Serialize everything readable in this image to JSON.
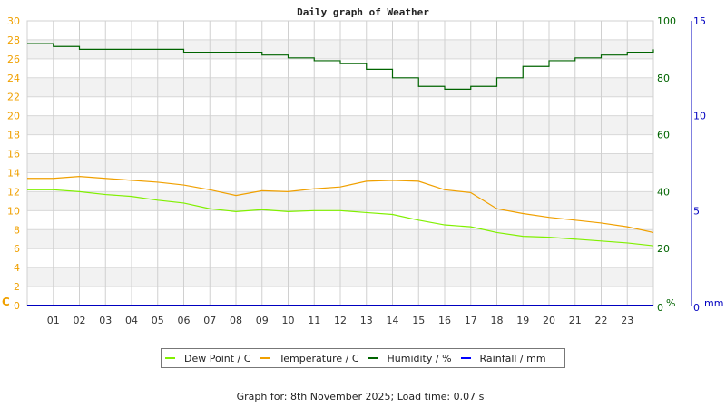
{
  "chart_data": {
    "type": "line",
    "title": "Daily graph of Weather",
    "xlabel": "",
    "x_ticks": [
      "01",
      "02",
      "03",
      "04",
      "05",
      "06",
      "07",
      "08",
      "09",
      "10",
      "11",
      "12",
      "13",
      "14",
      "15",
      "16",
      "17",
      "18",
      "19",
      "20",
      "21",
      "22",
      "23"
    ],
    "x": [
      0,
      1,
      2,
      3,
      4,
      5,
      6,
      7,
      8,
      9,
      10,
      11,
      12,
      13,
      14,
      15,
      16,
      17,
      18,
      19,
      20,
      21,
      22,
      23,
      24
    ],
    "axes": {
      "left": {
        "label": "C",
        "range": [
          0,
          30
        ],
        "ticks": [
          0,
          2,
          4,
          6,
          8,
          10,
          12,
          14,
          16,
          18,
          20,
          22,
          24,
          26,
          28,
          30
        ]
      },
      "right_humidity": {
        "label": "%",
        "range": [
          0,
          100
        ],
        "ticks": [
          0,
          20,
          40,
          60,
          80,
          100
        ]
      },
      "right_rainfall": {
        "label": "mm",
        "range": [
          0,
          15
        ],
        "ticks": [
          0,
          5,
          10,
          15
        ]
      }
    },
    "grid": true,
    "legend_position": "bottom",
    "series": [
      {
        "name": "Dew Point / C",
        "color": "#80f000",
        "axis": "left",
        "values": [
          12.2,
          12.2,
          12.0,
          11.7,
          11.5,
          11.1,
          10.8,
          10.2,
          9.9,
          10.1,
          9.9,
          10.0,
          10.0,
          9.8,
          9.6,
          9.0,
          8.5,
          8.3,
          7.7,
          7.3,
          7.2,
          7.0,
          6.8,
          6.6,
          6.3
        ]
      },
      {
        "name": "Temperature / C",
        "color": "#f0a000",
        "axis": "left",
        "values": [
          13.4,
          13.4,
          13.6,
          13.4,
          13.2,
          13.0,
          12.7,
          12.2,
          11.6,
          12.1,
          12.0,
          12.3,
          12.5,
          13.1,
          13.2,
          13.1,
          12.2,
          11.9,
          10.2,
          9.7,
          9.3,
          9.0,
          8.7,
          8.3,
          7.7
        ]
      },
      {
        "name": "Humidity / %",
        "color": "#006400",
        "axis": "right_humidity",
        "values": [
          92,
          91,
          90,
          90,
          90,
          90,
          89,
          89,
          89,
          88,
          87,
          86,
          85,
          83,
          80,
          77,
          76,
          77,
          80,
          84,
          86,
          87,
          88,
          89,
          90
        ]
      },
      {
        "name": "Rainfall / mm",
        "color": "#0000c0",
        "axis": "right_rainfall",
        "values": [
          0,
          0,
          0,
          0,
          0,
          0,
          0,
          0,
          0,
          0,
          0,
          0,
          0,
          0,
          0,
          0,
          0,
          0,
          0,
          0,
          0,
          0,
          0,
          0,
          0
        ]
      }
    ]
  },
  "legend": {
    "items": [
      {
        "label": "Dew Point / C",
        "color": "#80f000"
      },
      {
        "label": "Temperature / C",
        "color": "#f0a000"
      },
      {
        "label": "Humidity / %",
        "color": "#006400"
      },
      {
        "label": "Rainfall / mm",
        "color": "#0000ff"
      }
    ]
  },
  "footer": {
    "text": "Graph for: 8th November 2025; Load time: 0.07 s"
  }
}
